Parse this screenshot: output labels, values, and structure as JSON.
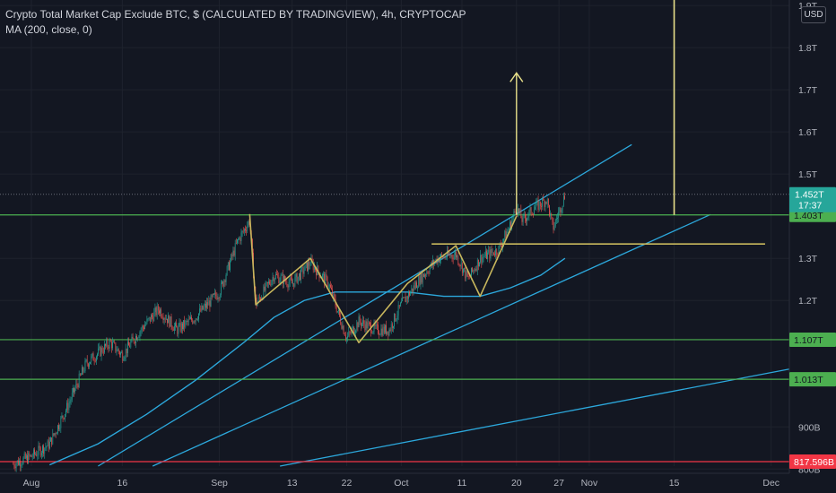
{
  "legend": {
    "title": "Crypto Total Market Cap Exclude BTC, $ (CALCULATED BY TRADINGVIEW), 4h, CRYPTOCAP",
    "indicator": "MA (200, close, 0)"
  },
  "currency_button": "USD",
  "chart_data": {
    "type": "candlestick",
    "ylim": [
      0.807,
      1.913
    ],
    "y_ticks": [
      {
        "value": 1.9,
        "label": "1.9T"
      },
      {
        "value": 1.8,
        "label": "1.8T"
      },
      {
        "value": 1.7,
        "label": "1.7T"
      },
      {
        "value": 1.6,
        "label": "1.6T"
      },
      {
        "value": 1.5,
        "label": "1.5T"
      },
      {
        "value": 1.3,
        "label": "1.3T"
      },
      {
        "value": 1.2,
        "label": "1.2T"
      },
      {
        "value": 0.9,
        "label": "900B"
      },
      {
        "value": 0.8,
        "label": "800B"
      }
    ],
    "x_ticks": [
      {
        "date": "2021-08-01",
        "label": "Aug"
      },
      {
        "date": "2021-08-16",
        "label": "16"
      },
      {
        "date": "2021-09-01",
        "label": "Sep"
      },
      {
        "date": "2021-09-13",
        "label": "13"
      },
      {
        "date": "2021-09-22",
        "label": "22"
      },
      {
        "date": "2021-10-01",
        "label": "Oct"
      },
      {
        "date": "2021-10-11",
        "label": "11"
      },
      {
        "date": "2021-10-20",
        "label": "20"
      },
      {
        "date": "2021-10-27",
        "label": "27"
      },
      {
        "date": "2021-11-01",
        "label": "Nov"
      },
      {
        "date": "2021-11-15",
        "label": "15"
      },
      {
        "date": "2021-12-01",
        "label": "Dec"
      }
    ],
    "price_path": [
      {
        "date": "2021-07-29",
        "value": 0.812
      },
      {
        "date": "2021-08-01",
        "value": 0.83
      },
      {
        "date": "2021-08-04",
        "value": 0.86
      },
      {
        "date": "2021-08-07",
        "value": 0.95
      },
      {
        "date": "2021-08-10",
        "value": 1.05
      },
      {
        "date": "2021-08-14",
        "value": 1.1
      },
      {
        "date": "2021-08-16",
        "value": 1.07
      },
      {
        "date": "2021-08-19",
        "value": 1.13
      },
      {
        "date": "2021-08-22",
        "value": 1.18
      },
      {
        "date": "2021-08-25",
        "value": 1.13
      },
      {
        "date": "2021-08-28",
        "value": 1.16
      },
      {
        "date": "2021-09-01",
        "value": 1.22
      },
      {
        "date": "2021-09-04",
        "value": 1.34
      },
      {
        "date": "2021-09-06",
        "value": 1.39
      },
      {
        "date": "2021-09-07",
        "value": 1.19
      },
      {
        "date": "2021-09-10",
        "value": 1.26
      },
      {
        "date": "2021-09-13",
        "value": 1.24
      },
      {
        "date": "2021-09-16",
        "value": 1.29
      },
      {
        "date": "2021-09-19",
        "value": 1.24
      },
      {
        "date": "2021-09-22",
        "value": 1.11
      },
      {
        "date": "2021-09-24",
        "value": 1.15
      },
      {
        "date": "2021-09-27",
        "value": 1.13
      },
      {
        "date": "2021-09-29",
        "value": 1.13
      },
      {
        "date": "2021-10-01",
        "value": 1.19
      },
      {
        "date": "2021-10-04",
        "value": 1.25
      },
      {
        "date": "2021-10-07",
        "value": 1.3
      },
      {
        "date": "2021-10-10",
        "value": 1.31
      },
      {
        "date": "2021-10-12",
        "value": 1.25
      },
      {
        "date": "2021-10-14",
        "value": 1.3
      },
      {
        "date": "2021-10-17",
        "value": 1.32
      },
      {
        "date": "2021-10-19",
        "value": 1.38
      },
      {
        "date": "2021-10-20",
        "value": 1.42
      },
      {
        "date": "2021-10-21",
        "value": 1.39
      },
      {
        "date": "2021-10-23",
        "value": 1.42
      },
      {
        "date": "2021-10-25",
        "value": 1.44
      },
      {
        "date": "2021-10-26",
        "value": 1.37
      },
      {
        "date": "2021-10-27",
        "value": 1.41
      },
      {
        "date": "2021-10-28",
        "value": 1.452
      }
    ],
    "moving_average": {
      "name": "MA (200, close, 0)",
      "color": "#2ca8dc",
      "points": [
        {
          "date": "2021-08-04",
          "value": 0.81
        },
        {
          "date": "2021-08-12",
          "value": 0.86
        },
        {
          "date": "2021-08-20",
          "value": 0.93
        },
        {
          "date": "2021-08-28",
          "value": 1.01
        },
        {
          "date": "2021-09-05",
          "value": 1.1
        },
        {
          "date": "2021-09-10",
          "value": 1.16
        },
        {
          "date": "2021-09-15",
          "value": 1.2
        },
        {
          "date": "2021-09-20",
          "value": 1.22
        },
        {
          "date": "2021-09-26",
          "value": 1.22
        },
        {
          "date": "2021-10-02",
          "value": 1.22
        },
        {
          "date": "2021-10-08",
          "value": 1.21
        },
        {
          "date": "2021-10-14",
          "value": 1.21
        },
        {
          "date": "2021-10-19",
          "value": 1.23
        },
        {
          "date": "2021-10-24",
          "value": 1.26
        },
        {
          "date": "2021-10-28",
          "value": 1.3
        }
      ]
    },
    "horizontal_levels": [
      {
        "value": 1.403,
        "label": "1.403T",
        "color": "#4caf50"
      },
      {
        "value": 1.107,
        "label": "1.107T",
        "color": "#4caf50"
      },
      {
        "value": 1.013,
        "label": "1.013T",
        "color": "#4caf50"
      },
      {
        "value": 0.8176,
        "label": "817.596B",
        "color": "#f23645"
      }
    ],
    "current_price": {
      "value": 1.452,
      "label": "1.452T",
      "countdown": "17:37",
      "color": "#26a69a"
    },
    "trendlines": [
      {
        "color": "#2ca8dc",
        "from": {
          "date": "2021-08-12",
          "value": 0.807
        },
        "to": {
          "date": "2021-11-08",
          "value": 1.57
        }
      },
      {
        "color": "#2ca8dc",
        "from": {
          "date": "2021-08-21",
          "value": 0.807
        },
        "to": {
          "date": "2021-11-21",
          "value": 1.404
        }
      },
      {
        "color": "#2ca8dc",
        "from": {
          "date": "2021-09-11",
          "value": 0.807
        },
        "to": {
          "date": "2021-12-05",
          "value": 1.04
        }
      }
    ],
    "pattern_lines": [
      {
        "color": "#c8b75d",
        "points": [
          {
            "date": "2021-09-06",
            "value": 1.405
          },
          {
            "date": "2021-09-07",
            "value": 1.19
          },
          {
            "date": "2021-09-16",
            "value": 1.3
          },
          {
            "date": "2021-09-24",
            "value": 1.1
          },
          {
            "date": "2021-10-02",
            "value": 1.24
          },
          {
            "date": "2021-10-10",
            "value": 1.33
          },
          {
            "date": "2021-10-14",
            "value": 1.21
          },
          {
            "date": "2021-10-20",
            "value": 1.4
          }
        ]
      },
      {
        "color": "#c8b75d",
        "points": [
          {
            "date": "2021-10-06",
            "value": 1.334
          },
          {
            "date": "2021-11-30",
            "value": 1.334
          }
        ]
      }
    ],
    "target_arrow": {
      "color": "#e8e08a",
      "date": "2021-10-20",
      "from": 1.403,
      "to": 1.74
    },
    "measure_line": {
      "color": "#e8e08a",
      "date": "2021-11-15",
      "from": 1.403,
      "to": 1.913
    }
  }
}
